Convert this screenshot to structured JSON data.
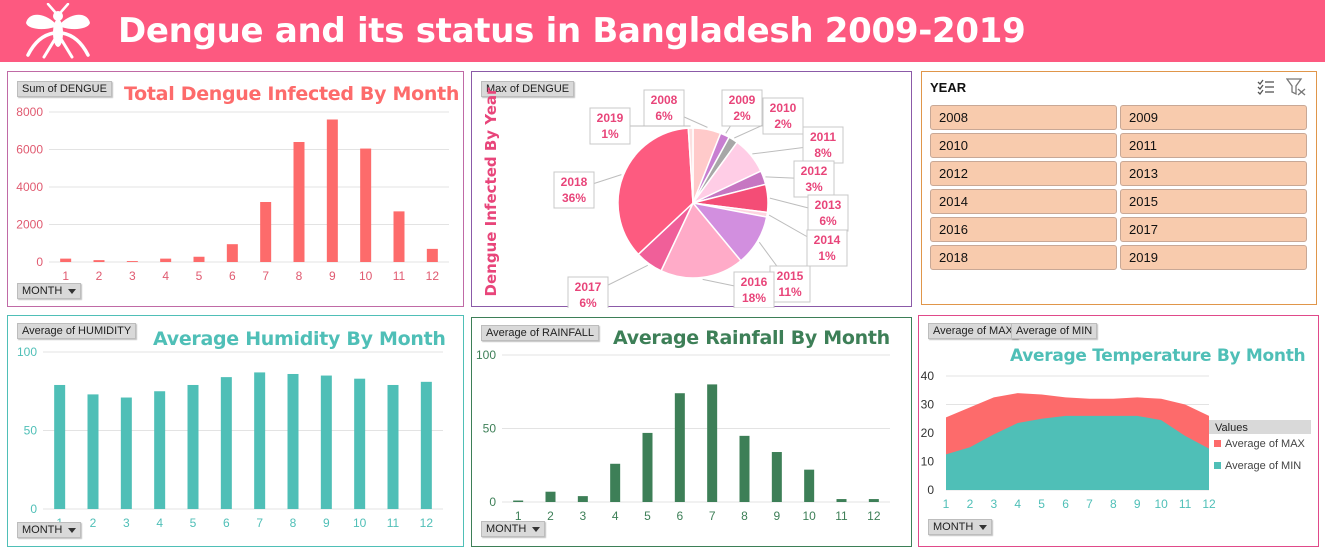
{
  "header": {
    "title": "Dengue and its status in Bangladesh 2009-2019",
    "icon": "mosquito-icon",
    "bg": "#fd5980"
  },
  "charts": {
    "dengue_month": {
      "title": "Total Dengue Infected By Month",
      "field_button": "Sum of DENGUE",
      "axis_button": "MONTH",
      "color": "#fd6b6b",
      "title_color": "#fd6b6b",
      "tick_color": "#e05a70"
    },
    "dengue_year": {
      "field_button": "Max of DENGUE",
      "ylabel": "Dengue Infected By Year",
      "label_color": "#e8457a"
    },
    "humidity": {
      "title": "Average Humidity By Month",
      "field_button": "Average of HUMIDITY",
      "axis_button": "MONTH",
      "color": "#4fbfb7",
      "title_color": "#4fbfb7"
    },
    "rainfall": {
      "title": "Average Rainfall By Month",
      "field_button": "Average of RAINFALL",
      "axis_button": "MONTH",
      "color": "#3d7f57",
      "title_color": "#3d7f57"
    },
    "temperature": {
      "title": "Average Temperature By Month",
      "field_buttons": [
        "Average of MAX",
        "Average of MIN"
      ],
      "axis_button": "MONTH",
      "legend_title": "Values",
      "title_color": "#4fbfb7",
      "max_color": "#fd6b6b",
      "min_color": "#4fbfb7"
    }
  },
  "slicer": {
    "title": "YEAR",
    "items": [
      "2008",
      "2009",
      "2010",
      "2011",
      "2012",
      "2013",
      "2014",
      "2015",
      "2016",
      "2017",
      "2018",
      "2019"
    ],
    "multi_select_icon": "multi-select-icon",
    "clear_filter_icon": "clear-filter-icon",
    "item_color": "#f8cbad"
  },
  "chart_data": [
    {
      "type": "bar",
      "title": "Total Dengue Infected By Month",
      "categories": [
        "1",
        "2",
        "3",
        "4",
        "5",
        "6",
        "7",
        "8",
        "9",
        "10",
        "11",
        "12"
      ],
      "series": [
        {
          "name": "Sum of DENGUE",
          "values": [
            180,
            100,
            50,
            180,
            280,
            950,
            3200,
            6400,
            7600,
            6050,
            2700,
            700
          ]
        }
      ],
      "ylim": [
        0,
        8000
      ],
      "yticks": [
        "0",
        "2000",
        "4000",
        "6000",
        "8000"
      ]
    },
    {
      "type": "pie",
      "ylabel": "Dengue Infected By Year",
      "slices": [
        {
          "label": "2008",
          "pct": "6%",
          "value": 6,
          "color": "#ffcaca"
        },
        {
          "label": "2009",
          "pct": "2%",
          "value": 2,
          "color": "#c87fd1"
        },
        {
          "label": "2010",
          "pct": "2%",
          "value": 2,
          "color": "#a7a7a7"
        },
        {
          "label": "2011",
          "pct": "8%",
          "value": 8,
          "color": "#ffcde6"
        },
        {
          "label": "2012",
          "pct": "3%",
          "value": 3,
          "color": "#c676c2"
        },
        {
          "label": "2013",
          "pct": "6%",
          "value": 6,
          "color": "#f44d76"
        },
        {
          "label": "2014",
          "pct": "1%",
          "value": 1,
          "color": "#ffd4e0"
        },
        {
          "label": "2015",
          "pct": "11%",
          "value": 11,
          "color": "#d28fdf"
        },
        {
          "label": "2016",
          "pct": "18%",
          "value": 18,
          "color": "#ffabc8"
        },
        {
          "label": "2017",
          "pct": "6%",
          "value": 6,
          "color": "#f05f99"
        },
        {
          "label": "2018",
          "pct": "36%",
          "value": 36,
          "color": "#fd5b80"
        },
        {
          "label": "2019",
          "pct": "1%",
          "value": 1,
          "color": "#fce0e0"
        }
      ]
    },
    {
      "type": "bar",
      "title": "Average Humidity By Month",
      "categories": [
        "1",
        "2",
        "3",
        "4",
        "5",
        "6",
        "7",
        "8",
        "9",
        "10",
        "11",
        "12"
      ],
      "series": [
        {
          "name": "Average of HUMIDITY",
          "values": [
            79,
            73,
            71,
            75,
            79,
            84,
            87,
            86,
            85,
            83,
            79,
            81
          ]
        }
      ],
      "ylim": [
        0,
        100
      ],
      "yticks": [
        "0",
        "50",
        "100"
      ]
    },
    {
      "type": "bar",
      "title": "Average Rainfall By Month",
      "categories": [
        "1",
        "2",
        "3",
        "4",
        "5",
        "6",
        "7",
        "8",
        "9",
        "10",
        "11",
        "12"
      ],
      "series": [
        {
          "name": "Average of RAINFALL",
          "values": [
            1,
            7,
            4,
            26,
            47,
            74,
            80,
            45,
            34,
            22,
            2,
            2
          ]
        }
      ],
      "ylim": [
        0,
        100
      ],
      "yticks": [
        "0",
        "50",
        "100"
      ]
    },
    {
      "type": "area",
      "title": "Average Temperature By Month",
      "categories": [
        "1",
        "2",
        "3",
        "4",
        "5",
        "6",
        "7",
        "8",
        "9",
        "10",
        "11",
        "12"
      ],
      "series": [
        {
          "name": "Average of MAX",
          "values": [
            25.5,
            29,
            32.5,
            34,
            33.5,
            32.5,
            32,
            32,
            32.5,
            32,
            30,
            26
          ]
        },
        {
          "name": "Average of MIN",
          "values": [
            12.5,
            15,
            19.5,
            23.5,
            25,
            26,
            26,
            26,
            26,
            24.5,
            19,
            14.5
          ]
        }
      ],
      "ylim": [
        0,
        40
      ],
      "yticks": [
        "0",
        "10",
        "20",
        "30",
        "40"
      ]
    }
  ]
}
